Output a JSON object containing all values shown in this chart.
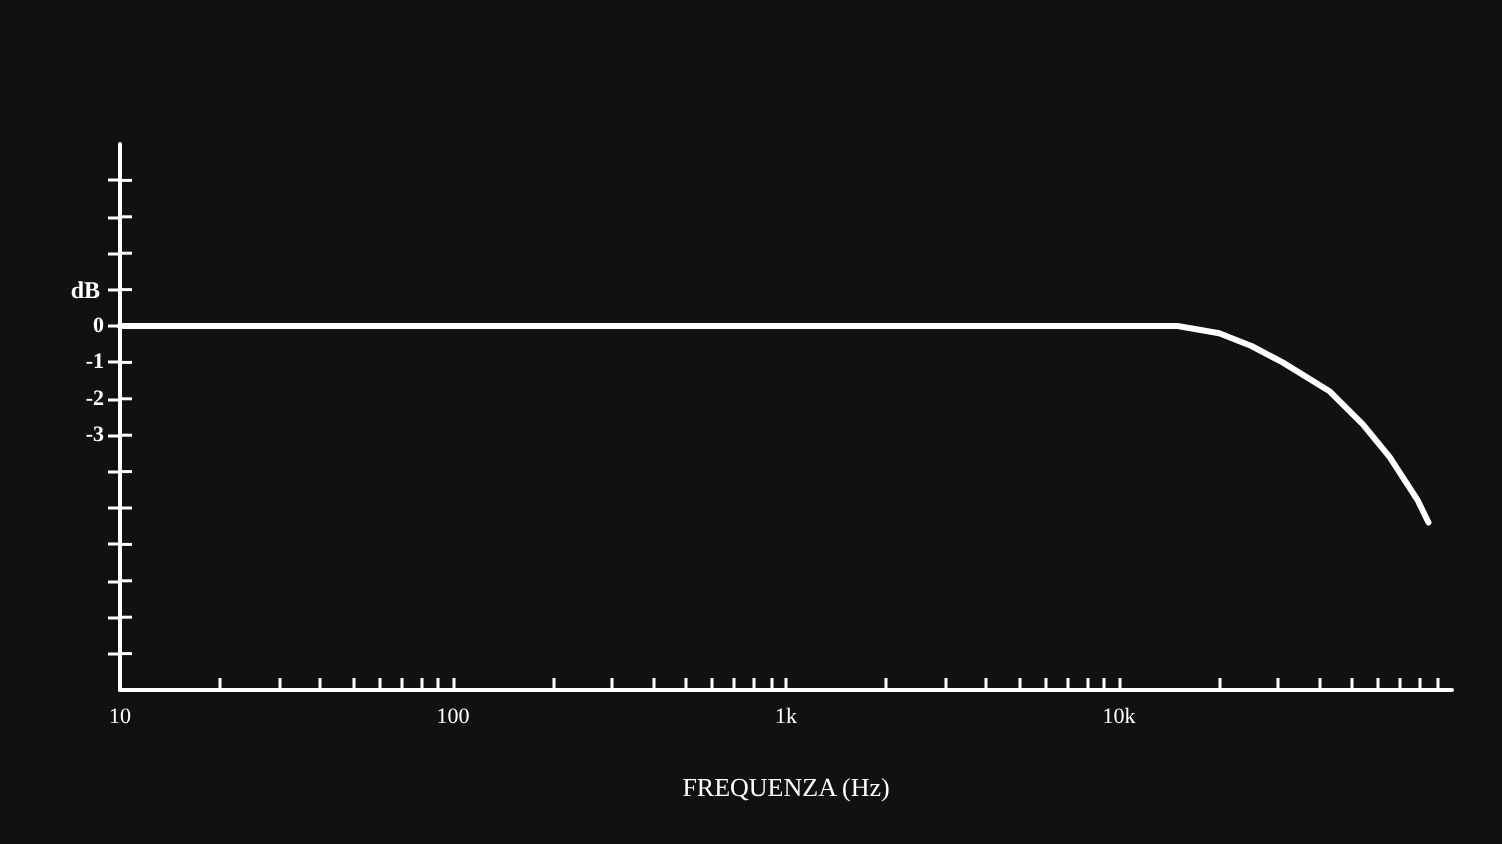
{
  "chart_data": {
    "type": "line",
    "xlabel": "FREQUENZA (Hz)",
    "ylabel": "dB",
    "x": [
      10,
      100,
      1000,
      10000,
      15000,
      20000,
      25000,
      31000,
      43000,
      54000,
      65000,
      79000,
      85000
    ],
    "series": [
      {
        "color": "#ffffff",
        "values": [
          0,
          0,
          0,
          0,
          0,
          -0.2,
          -0.55,
          -1,
          -1.8,
          -2.7,
          -3.6,
          -4.8,
          -5.4
        ]
      }
    ],
    "log": "x",
    "xlim": [
      10,
      100000
    ],
    "xticks": [
      10,
      {
        "value": 20,
        "label": null
      },
      {
        "value": 30,
        "label": null
      },
      {
        "value": 40,
        "label": null
      },
      {
        "value": 50,
        "label": null
      },
      {
        "value": 60,
        "label": null
      },
      {
        "value": 70,
        "label": null
      },
      {
        "value": 80,
        "label": null
      },
      {
        "value": 90,
        "label": null
      },
      100,
      {
        "value": 200,
        "label": null
      },
      {
        "value": 300,
        "label": null
      },
      {
        "value": 400,
        "label": null
      },
      {
        "value": 500,
        "label": null
      },
      {
        "value": 600,
        "label": null
      },
      {
        "value": 700,
        "label": null
      },
      {
        "value": 800,
        "label": null
      },
      {
        "value": 900,
        "label": null
      },
      {
        "value": 1000,
        "label": "1k"
      },
      {
        "value": 2000,
        "label": null
      },
      {
        "value": 3000,
        "label": null
      },
      {
        "value": 4000,
        "label": null
      },
      {
        "value": 5000,
        "label": null
      },
      {
        "value": 6000,
        "label": null
      },
      {
        "value": 7000,
        "label": null
      },
      {
        "value": 8000,
        "label": null
      },
      {
        "value": 9000,
        "label": null
      },
      {
        "value": 10000,
        "label": "10k"
      },
      {
        "value": 20000,
        "label": null
      },
      {
        "value": 30000,
        "label": null
      },
      {
        "value": 40000,
        "label": null
      },
      {
        "value": 50000,
        "label": null
      },
      {
        "value": 60000,
        "label": null
      },
      {
        "value": 70000,
        "label": null
      },
      {
        "value": 80000,
        "label": null
      },
      {
        "value": 90000,
        "label": null
      }
    ],
    "ylim": [
      -10,
      5
    ],
    "yticks": [
      {
        "value": 4,
        "label": null
      },
      {
        "value": 3,
        "label": null
      },
      {
        "value": 2,
        "label": null
      },
      {
        "value": 1,
        "label": null
      },
      0,
      -1,
      -2,
      -3,
      {
        "value": -4,
        "label": null
      },
      {
        "value": -5,
        "label": null
      },
      {
        "value": -6,
        "label": null
      },
      {
        "value": -7,
        "label": null
      },
      {
        "value": -8,
        "label": null
      },
      {
        "value": -9,
        "label": null
      }
    ],
    "grid": false,
    "marker": "none",
    "line_style": "solid"
  }
}
